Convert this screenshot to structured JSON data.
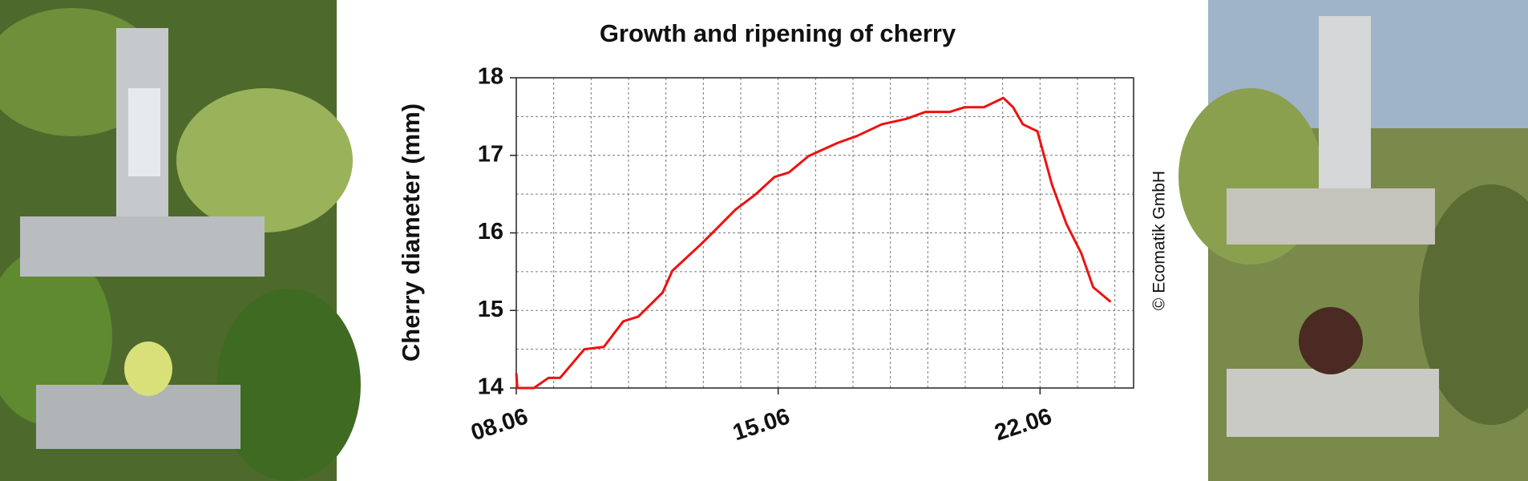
{
  "chart_data": {
    "type": "line",
    "title": "Growth and ripening of cherry",
    "ylabel": "Cherry diameter (mm)",
    "annotation": "© Ecomatik GmbH",
    "xlim": [
      0,
      16.5
    ],
    "xticks": [
      {
        "value": 0,
        "label": "08.06"
      },
      {
        "value": 7,
        "label": "15.06"
      },
      {
        "value": 14,
        "label": "22.06"
      }
    ],
    "xminorticks": [
      1,
      2,
      3,
      4,
      5,
      6,
      8,
      9,
      10,
      11,
      12,
      13,
      15,
      16
    ],
    "ylim": [
      14,
      18
    ],
    "yticks": [
      14,
      15,
      16,
      17,
      18
    ],
    "yminorticks": [
      14.5,
      15.5,
      16.5,
      17.5
    ],
    "grid": true,
    "series": [
      {
        "name": "Cherry diameter",
        "color": "#ee1111",
        "x": [
          0,
          0.03,
          0.47,
          0.86,
          1.17,
          1.82,
          2.34,
          2.86,
          3.26,
          3.91,
          4.17,
          4.95,
          5.47,
          5.86,
          6.38,
          6.9,
          7.29,
          7.81,
          8.59,
          9.11,
          9.77,
          10.42,
          10.94,
          11.59,
          11.98,
          12.5,
          13.02,
          13.28,
          13.54,
          13.93,
          14.32,
          14.71,
          15.1,
          15.42,
          15.89
        ],
        "values": [
          14.19,
          14.0,
          14.0,
          14.13,
          14.13,
          14.5,
          14.53,
          14.86,
          14.92,
          15.23,
          15.51,
          15.86,
          16.11,
          16.3,
          16.49,
          16.72,
          16.78,
          16.99,
          17.16,
          17.25,
          17.4,
          17.47,
          17.56,
          17.56,
          17.62,
          17.62,
          17.74,
          17.62,
          17.4,
          17.31,
          16.62,
          16.11,
          15.74,
          15.3,
          15.11
        ]
      }
    ]
  }
}
